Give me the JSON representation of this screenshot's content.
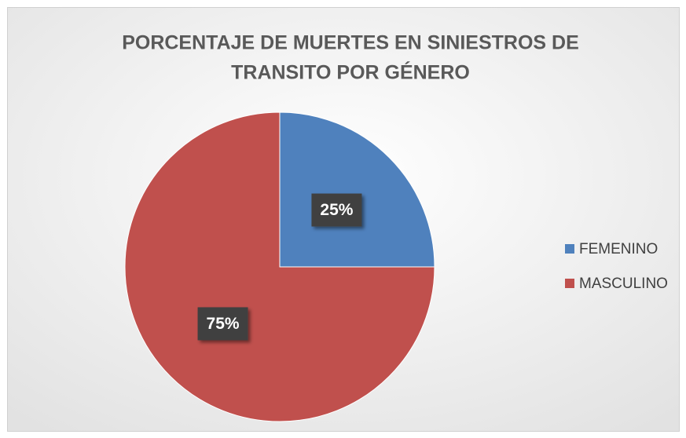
{
  "chart_data": {
    "type": "pie",
    "title": [
      "PORCENTAJE DE MUERTES EN SINIESTROS DE",
      "TRANSITO POR GÉNERO"
    ],
    "categories": [
      "FEMENINO",
      "MASCULINO"
    ],
    "values": [
      25,
      75
    ],
    "value_labels": [
      "25%",
      "75%"
    ],
    "colors": [
      "#4f81bd",
      "#c0504d"
    ],
    "legend": "right"
  }
}
